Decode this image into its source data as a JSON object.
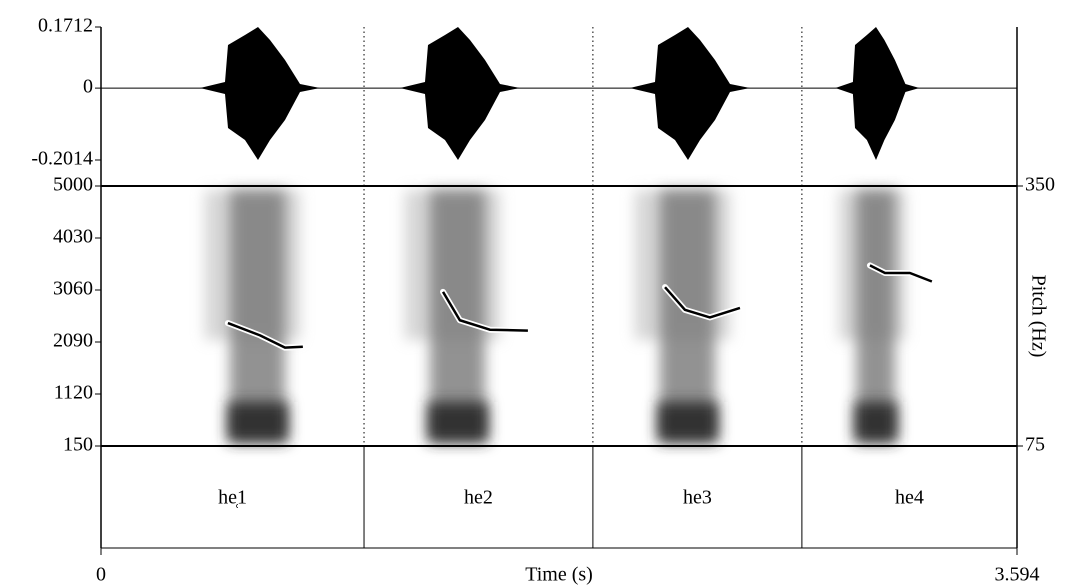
{
  "chart_data": [
    {
      "type": "waveform",
      "ylim": [
        -0.2014,
        0.1712
      ],
      "yticks": [
        -0.2014,
        0,
        0.1712
      ]
    },
    {
      "type": "spectrogram",
      "ylim": [
        150,
        5000
      ],
      "yticks": [
        150,
        1120,
        2090,
        3060,
        4030,
        5000
      ],
      "y2label": "Pitch (Hz)",
      "y2lim": [
        75,
        350
      ],
      "y2ticks": [
        75,
        350
      ],
      "series": [
        {
          "axis": "y2",
          "color": "#000000",
          "x": [
            0.498,
            0.624,
            0.722,
            0.792
          ],
          "values": [
            205,
            192,
            179,
            180
          ]
        },
        {
          "axis": "y2",
          "color": "#000000",
          "x": [
            1.342,
            1.408,
            1.526,
            1.675
          ],
          "values": [
            238,
            208,
            198,
            197
          ]
        },
        {
          "axis": "y2",
          "color": "#000000",
          "x": [
            2.213,
            2.291,
            2.389,
            2.507
          ],
          "values": [
            243,
            219,
            211,
            221
          ]
        },
        {
          "axis": "y2",
          "color": "#000000",
          "x": [
            3.017,
            3.076,
            3.174,
            3.26
          ],
          "values": [
            266,
            258,
            258,
            249
          ]
        }
      ]
    },
    {
      "type": "textgrid",
      "boundaries": [
        1.032,
        1.93,
        2.75
      ],
      "labels": [
        "he̜1",
        "he2",
        "he3",
        "he4"
      ],
      "xlabel": "Time (s)",
      "xlim": [
        0,
        3.594
      ],
      "xticks": [
        0,
        3.594
      ]
    }
  ]
}
